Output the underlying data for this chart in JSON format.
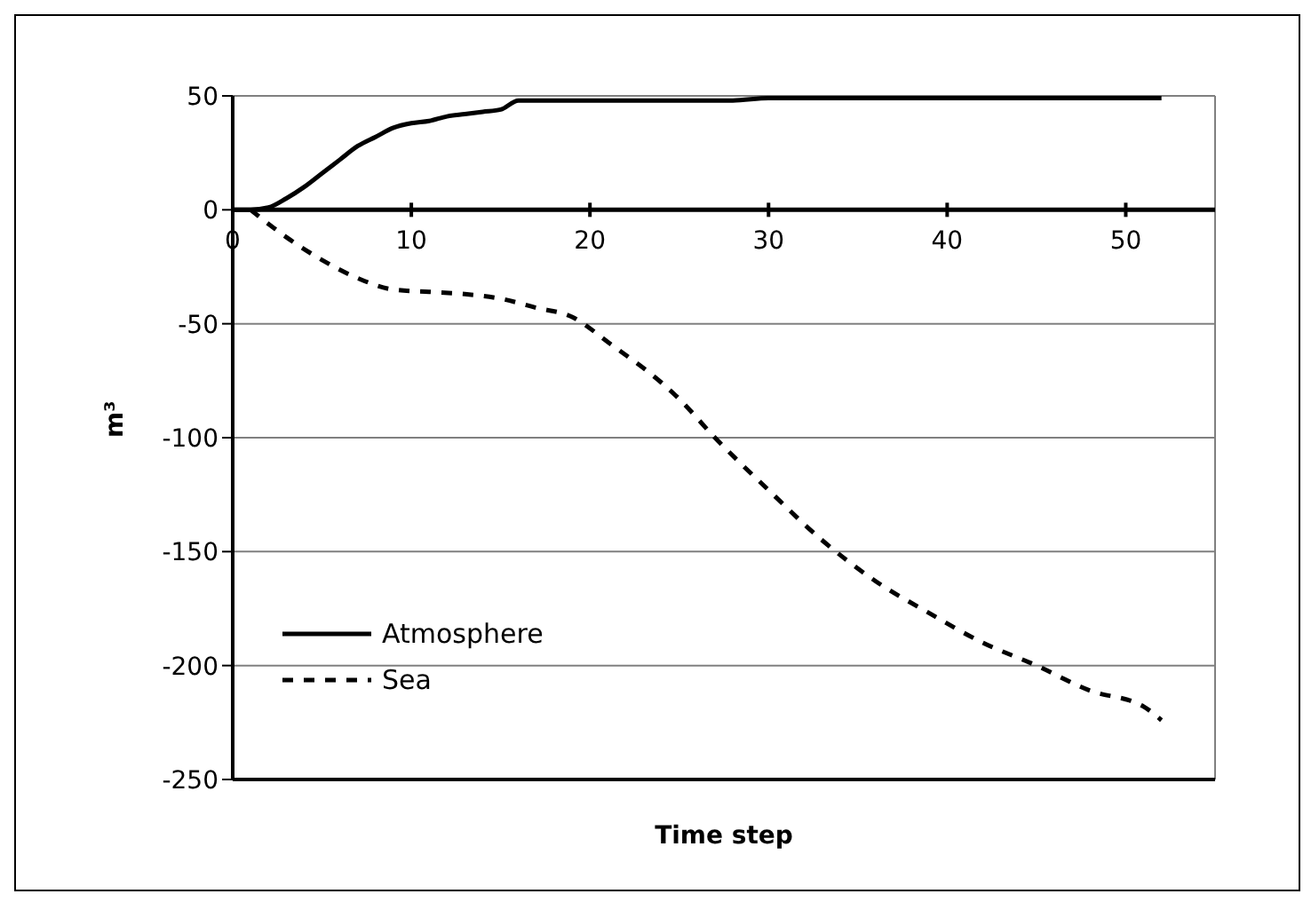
{
  "chart_data": {
    "type": "line",
    "xlabel": "Time step",
    "ylabel": "m³",
    "xlim": [
      0,
      55
    ],
    "xticks": [
      0,
      10,
      20,
      30,
      40,
      50
    ],
    "ylim": [
      -250,
      50
    ],
    "yticks": [
      -250,
      -200,
      -150,
      -100,
      -50,
      0,
      50
    ],
    "grid": "y",
    "legend": "bottom left",
    "marker": "none",
    "series": [
      {
        "name": "Atmosphere",
        "color": "#000000",
        "line_style": "solid",
        "x": [
          0,
          1,
          2,
          3,
          4,
          5,
          6,
          7,
          8,
          9,
          10,
          11,
          12,
          13,
          14,
          15,
          16,
          20,
          28,
          30,
          40,
          52
        ],
        "values": [
          0,
          0,
          1,
          5,
          10,
          16,
          22,
          28,
          32,
          36,
          38,
          39,
          41,
          42,
          43,
          44,
          48,
          48,
          48,
          49,
          49,
          49
        ]
      },
      {
        "name": "Sea",
        "color": "#000000",
        "line_style": "dashed",
        "x": [
          1,
          3,
          5,
          7,
          9,
          11,
          13,
          15,
          17,
          19,
          21,
          25,
          27,
          30,
          33,
          36,
          39,
          42,
          45,
          48,
          51,
          52
        ],
        "values": [
          0,
          -12,
          -22,
          -30,
          -35,
          -36,
          -37,
          -39,
          -43,
          -47,
          -58,
          -83,
          -100,
          -123,
          -145,
          -163,
          -177,
          -190,
          -200,
          -211,
          -218,
          -224
        ]
      }
    ]
  }
}
